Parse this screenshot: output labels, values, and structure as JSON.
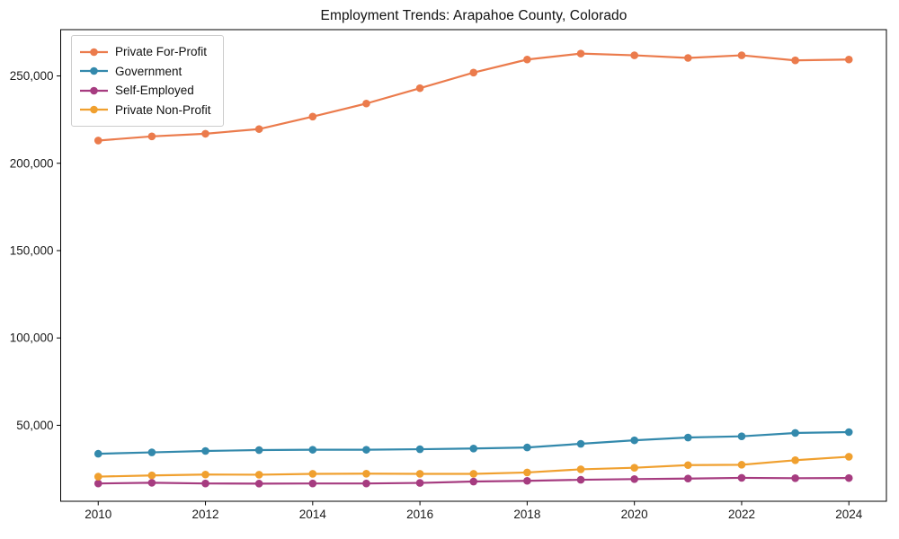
{
  "figure": {
    "background": "#ffffff",
    "axis_color": "#000000",
    "tick_label_color": "#1a1a1a",
    "legend_border_color": "#cccccc"
  },
  "chart_data": {
    "type": "line",
    "title": "Employment Trends: Arapahoe County, Colorado",
    "xlabel": "",
    "ylabel": "",
    "grid": false,
    "legend_position": "upper left",
    "xlim": [
      2009.3,
      2024.7
    ],
    "ylim": [
      6500,
      276500
    ],
    "x": [
      2010,
      2011,
      2012,
      2013,
      2014,
      2015,
      2016,
      2017,
      2018,
      2019,
      2020,
      2021,
      2022,
      2023,
      2024
    ],
    "series": [
      {
        "name": "Private For-Profit",
        "color": "#EB7B4C",
        "values": [
          213000,
          215400,
          216900,
          219600,
          226700,
          234200,
          243000,
          251900,
          259400,
          262800,
          261800,
          260300,
          261800,
          258900,
          259400
        ]
      },
      {
        "name": "Government",
        "color": "#3389AC",
        "values": [
          33700,
          34500,
          35300,
          35800,
          36000,
          36000,
          36300,
          36700,
          37300,
          39400,
          41400,
          43000,
          43700,
          45600,
          46100
        ]
      },
      {
        "name": "Self-Employed",
        "color": "#A63C80",
        "values": [
          16700,
          17100,
          16700,
          16600,
          16700,
          16700,
          17000,
          17800,
          18200,
          18800,
          19200,
          19500,
          19900,
          19700,
          19800
        ]
      },
      {
        "name": "Private Non-Profit",
        "color": "#F0A02F",
        "values": [
          20600,
          21300,
          21800,
          21700,
          22200,
          22300,
          22200,
          22200,
          23000,
          24800,
          25700,
          27200,
          27400,
          30000,
          32000
        ]
      }
    ],
    "xticks": {
      "values": [
        2010,
        2012,
        2014,
        2016,
        2018,
        2020,
        2022,
        2024
      ],
      "labels": [
        "2010",
        "2012",
        "2014",
        "2016",
        "2018",
        "2020",
        "2022",
        "2024"
      ]
    },
    "yticks": {
      "values": [
        50000,
        100000,
        150000,
        200000,
        250000
      ],
      "labels": [
        "50,000",
        "100,000",
        "150,000",
        "200,000",
        "250,000"
      ]
    }
  }
}
